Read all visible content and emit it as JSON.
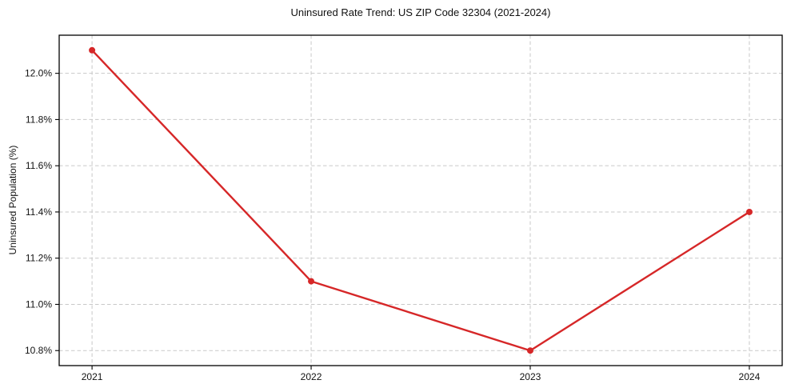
{
  "chart_data": {
    "type": "line",
    "title": "Uninsured Rate Trend: US ZIP Code 32304 (2021-2024)",
    "xlabel": "",
    "ylabel": "Uninsured Population (%)",
    "x": [
      2021,
      2022,
      2023,
      2024
    ],
    "values": [
      12.1,
      11.1,
      10.8,
      11.4
    ],
    "xlim": [
      2020.85,
      2024.15
    ],
    "ylim": [
      10.735,
      12.165
    ],
    "xticks": {
      "values": [
        2021,
        2022,
        2023,
        2024
      ],
      "labels": [
        "2021",
        "2022",
        "2023",
        "2024"
      ]
    },
    "yticks": {
      "values": [
        10.8,
        11.0,
        11.2,
        11.4,
        11.6,
        11.8,
        12.0
      ],
      "labels": [
        "10.8%",
        "11.0%",
        "11.2%",
        "11.4%",
        "11.6%",
        "11.8%",
        "12.0%"
      ]
    },
    "grid": true,
    "grid_style": "dashed",
    "legend": "none",
    "colors": {
      "line": "#d62728",
      "marker": "#d62728",
      "grid": "#c9c9c9",
      "frame": "#000000",
      "text": "#111111"
    }
  }
}
